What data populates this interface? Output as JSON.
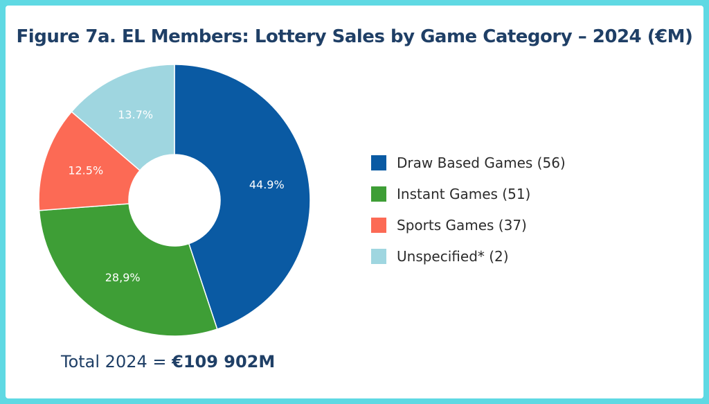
{
  "chart_data": {
    "type": "pie",
    "title": "Figure 7a. EL Members: Lottery Sales by Game Category – 2024 (€M)",
    "categories": [
      "Draw Based Games (56)",
      "Instant Games (51)",
      "Sports Games (37)",
      "Unspecified* (2)"
    ],
    "values": [
      44.9,
      28.9,
      12.5,
      13.7
    ],
    "data_labels": [
      "44.9%",
      "28,9%",
      "12.5%",
      "13.7%"
    ],
    "colors": [
      "#0a5aa3",
      "#3e9e36",
      "#fc6a55",
      "#9fd6e0"
    ],
    "donut": true,
    "legend_position": "right"
  },
  "total": {
    "prefix": "Total 2024 = ",
    "value": "€109 902M"
  },
  "colors": {
    "border": "#5fd9e3",
    "title": "#1f3f66"
  }
}
